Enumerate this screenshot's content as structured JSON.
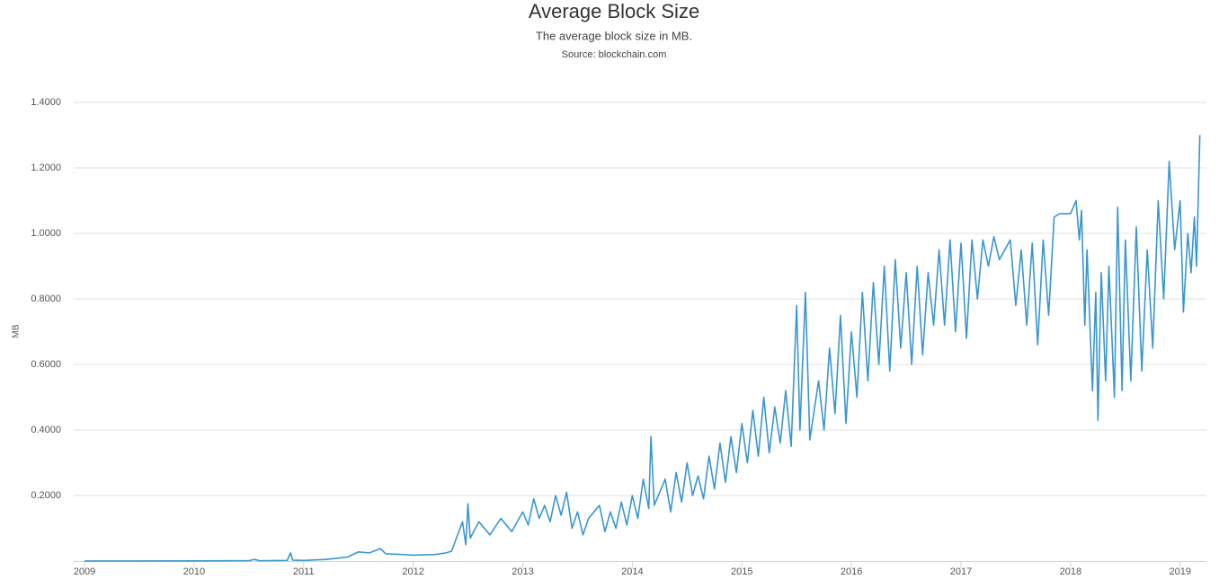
{
  "chart_data": {
    "type": "line",
    "title": "Average Block Size",
    "subtitle": "The average block size in MB.",
    "source": "Source: blockchain.com",
    "y_label": "MB",
    "x": [
      2009.0,
      2009.5,
      2010.0,
      2010.5,
      2010.55,
      2010.6,
      2010.85,
      2010.88,
      2010.9,
      2011.0,
      2011.2,
      2011.4,
      2011.5,
      2011.6,
      2011.7,
      2011.75,
      2011.9,
      2012.0,
      2012.2,
      2012.3,
      2012.35,
      2012.4,
      2012.45,
      2012.48,
      2012.5,
      2012.52,
      2012.6,
      2012.7,
      2012.8,
      2012.9,
      2013.0,
      2013.05,
      2013.1,
      2013.15,
      2013.2,
      2013.25,
      2013.3,
      2013.35,
      2013.4,
      2013.45,
      2013.5,
      2013.55,
      2013.6,
      2013.7,
      2013.75,
      2013.8,
      2013.85,
      2013.9,
      2013.95,
      2014.0,
      2014.05,
      2014.1,
      2014.15,
      2014.17,
      2014.2,
      2014.3,
      2014.35,
      2014.4,
      2014.45,
      2014.5,
      2014.55,
      2014.6,
      2014.65,
      2014.7,
      2014.75,
      2014.8,
      2014.85,
      2014.9,
      2014.95,
      2015.0,
      2015.05,
      2015.1,
      2015.15,
      2015.2,
      2015.25,
      2015.3,
      2015.35,
      2015.4,
      2015.45,
      2015.5,
      2015.53,
      2015.58,
      2015.62,
      2015.7,
      2015.75,
      2015.8,
      2015.85,
      2015.9,
      2015.95,
      2016.0,
      2016.05,
      2016.1,
      2016.15,
      2016.2,
      2016.25,
      2016.3,
      2016.35,
      2016.4,
      2016.45,
      2016.5,
      2016.55,
      2016.6,
      2016.65,
      2016.7,
      2016.75,
      2016.8,
      2016.85,
      2016.9,
      2016.95,
      2017.0,
      2017.05,
      2017.1,
      2017.15,
      2017.2,
      2017.25,
      2017.3,
      2017.35,
      2017.45,
      2017.5,
      2017.55,
      2017.6,
      2017.65,
      2017.7,
      2017.75,
      2017.8,
      2017.85,
      2017.9,
      2018.0,
      2018.05,
      2018.08,
      2018.1,
      2018.13,
      2018.15,
      2018.2,
      2018.23,
      2018.25,
      2018.28,
      2018.32,
      2018.35,
      2018.4,
      2018.43,
      2018.47,
      2018.5,
      2018.55,
      2018.6,
      2018.65,
      2018.7,
      2018.75,
      2018.8,
      2018.85,
      2018.9,
      2018.95,
      2019.0,
      2019.03,
      2019.07,
      2019.1,
      2019.13,
      2019.15,
      2019.18
    ],
    "series": [
      {
        "name": "Average Block Size",
        "color": "#3a96cf",
        "values": [
          0.0002,
          0.0002,
          0.0005,
          0.001,
          0.005,
          0.001,
          0.002,
          0.025,
          0.003,
          0.002,
          0.005,
          0.012,
          0.028,
          0.025,
          0.038,
          0.022,
          0.02,
          0.018,
          0.02,
          0.025,
          0.03,
          0.075,
          0.12,
          0.05,
          0.175,
          0.07,
          0.12,
          0.08,
          0.13,
          0.09,
          0.15,
          0.11,
          0.19,
          0.13,
          0.17,
          0.12,
          0.2,
          0.14,
          0.21,
          0.1,
          0.15,
          0.08,
          0.13,
          0.17,
          0.09,
          0.15,
          0.1,
          0.18,
          0.11,
          0.2,
          0.13,
          0.25,
          0.16,
          0.38,
          0.17,
          0.25,
          0.15,
          0.27,
          0.18,
          0.3,
          0.2,
          0.26,
          0.19,
          0.32,
          0.22,
          0.36,
          0.24,
          0.38,
          0.27,
          0.42,
          0.3,
          0.46,
          0.32,
          0.5,
          0.33,
          0.47,
          0.36,
          0.52,
          0.35,
          0.78,
          0.4,
          0.82,
          0.37,
          0.55,
          0.4,
          0.65,
          0.45,
          0.75,
          0.42,
          0.7,
          0.5,
          0.82,
          0.55,
          0.85,
          0.6,
          0.9,
          0.58,
          0.92,
          0.65,
          0.88,
          0.6,
          0.9,
          0.63,
          0.88,
          0.72,
          0.95,
          0.72,
          0.98,
          0.7,
          0.97,
          0.68,
          0.98,
          0.8,
          0.98,
          0.9,
          0.99,
          0.92,
          0.98,
          0.78,
          0.95,
          0.72,
          0.97,
          0.66,
          0.98,
          0.75,
          1.05,
          1.06,
          1.06,
          1.1,
          0.98,
          1.07,
          0.72,
          0.95,
          0.52,
          0.82,
          0.43,
          0.88,
          0.55,
          0.9,
          0.5,
          1.08,
          0.52,
          0.98,
          0.55,
          1.02,
          0.58,
          0.95,
          0.65,
          1.1,
          0.8,
          1.22,
          0.95,
          1.1,
          0.76,
          1.0,
          0.88,
          1.05,
          0.9,
          1.3
        ]
      }
    ],
    "xlim": [
      2009,
      2019.24
    ],
    "xticks": [
      2009,
      2010,
      2011,
      2012,
      2013,
      2014,
      2015,
      2016,
      2017,
      2018,
      2019
    ],
    "ylim": [
      0,
      1.4
    ],
    "yticks": [
      {
        "value": 0.2,
        "label": "0.2000"
      },
      {
        "value": 0.4,
        "label": "0.4000"
      },
      {
        "value": 0.6,
        "label": "0.6000"
      },
      {
        "value": 0.8,
        "label": "0.8000"
      },
      {
        "value": 1.0,
        "label": "1.0000"
      },
      {
        "value": 1.2,
        "label": "1.2000"
      },
      {
        "value": 1.4,
        "label": "1.4000"
      }
    ],
    "grid": true
  }
}
